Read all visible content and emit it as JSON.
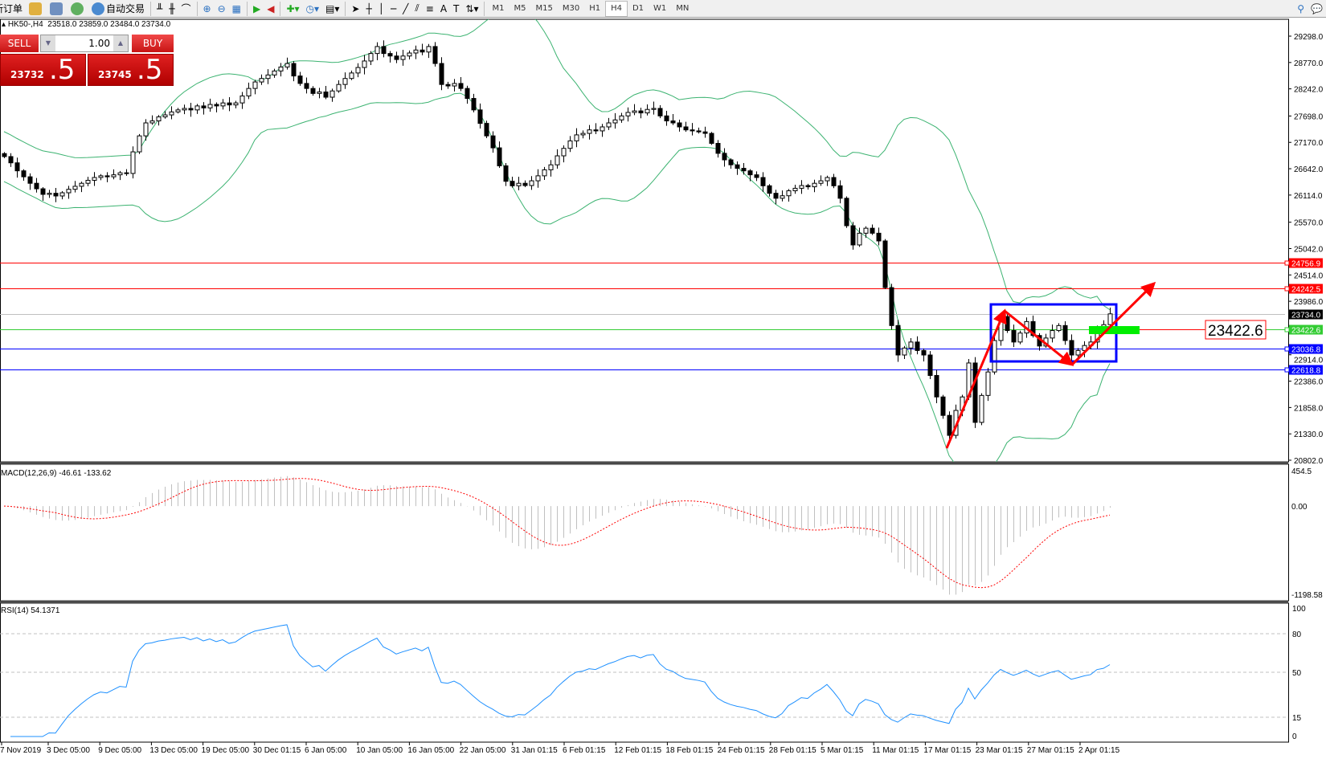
{
  "toolbar": {
    "new_order": "新订单",
    "auto_trading": "自动交易",
    "timeframes": [
      "M1",
      "M5",
      "M15",
      "M30",
      "H1",
      "H4",
      "D1",
      "W1",
      "MN"
    ],
    "active_timeframe": "H4"
  },
  "chart_header": {
    "symbol": "HK50-,H4",
    "ohlc": "23518.0 23859.0 23484.0 23734.0"
  },
  "trade_panel": {
    "sell_label": "SELL",
    "buy_label": "BUY",
    "lot": "1.00",
    "sell_price_main": "23732",
    "sell_price_big": ".5",
    "buy_price_main": "23745",
    "buy_price_big": ".5"
  },
  "chart_data": {
    "type": "candlestick",
    "symbol": "HK50-",
    "timeframe": "H4",
    "last_bar": {
      "open": 23518.0,
      "high": 23859.0,
      "low": 23484.0,
      "close": 23734.0
    },
    "price_ticks": [
      "29298.0",
      "28770.0",
      "28242.0",
      "27698.0",
      "27170.0",
      "26642.0",
      "26114.0",
      "25570.0",
      "25042.0",
      "24514.0",
      "23986.0",
      "22914.0",
      "22386.0",
      "21858.0",
      "21330.0",
      "20802.0"
    ],
    "ylim": [
      20802.0,
      29298.0
    ],
    "time_labels": [
      "7 Nov 2019",
      "3 Dec 05:00",
      "9 Dec 05:00",
      "13 Dec 05:00",
      "19 Dec 05:00",
      "30 Dec 01:15",
      "6 Jan 05:00",
      "10 Jan 05:00",
      "16 Jan 05:00",
      "22 Jan 05:00",
      "31 Jan 01:15",
      "6 Feb 01:15",
      "12 Feb 01:15",
      "18 Feb 01:15",
      "24 Feb 01:15",
      "28 Feb 01:15",
      "5 Mar 01:15",
      "11 Mar 01:15",
      "17 Mar 01:15",
      "23 Mar 01:15",
      "27 Mar 01:15",
      "2 Apr 01:15"
    ],
    "close": [
      26885,
      26760,
      26600,
      26480,
      26350,
      26240,
      26128,
      26150,
      26096,
      26160,
      26230,
      26290,
      26350,
      26410,
      26466,
      26500,
      26480,
      26520,
      26560,
      26547,
      26980,
      27300,
      27560,
      27600,
      27680,
      27720,
      27780,
      27820,
      27850,
      27820,
      27900,
      27860,
      27930,
      27900,
      27960,
      27920,
      27960,
      28100,
      28250,
      28380,
      28450,
      28520,
      28600,
      28680,
      28750,
      28500,
      28350,
      28250,
      28150,
      28180,
      28075,
      28200,
      28330,
      28450,
      28560,
      28670,
      28800,
      28950,
      29090,
      28950,
      28900,
      28830,
      28900,
      28960,
      29020,
      28980,
      29090,
      28750,
      28330,
      28300,
      28350,
      28250,
      28050,
      27820,
      27550,
      27300,
      27060,
      26700,
      26390,
      26300,
      26350,
      26305,
      26400,
      26500,
      26620,
      26720,
      26900,
      27050,
      27200,
      27320,
      27350,
      27420,
      27400,
      27480,
      27560,
      27620,
      27700,
      27770,
      27800,
      27760,
      27830,
      27850,
      27700,
      27600,
      27560,
      27480,
      27420,
      27400,
      27380,
      27350,
      27150,
      26950,
      26820,
      26720,
      26650,
      26600,
      26520,
      26466,
      26300,
      26150,
      26050,
      26100,
      26200,
      26250,
      26305,
      26280,
      26350,
      26400,
      26466,
      26300,
      26050,
      25500,
      25115,
      25350,
      25450,
      25350,
      25195,
      24260,
      23500,
      22910,
      23050,
      23170,
      23000,
      22910,
      22500,
      22070,
      21700,
      21300,
      21800,
      22070,
      22750,
      21560,
      22100,
      22570,
      23200,
      23680,
      23400,
      23170,
      23350,
      23580,
      23300,
      23090,
      23250,
      23400,
      23500,
      23200,
      22910,
      23000,
      23100,
      23170,
      23450,
      23518,
      23734
    ],
    "bollinger_color": "#3cb371",
    "bull_color": "#ffffff",
    "bear_color": "#000000",
    "horizontal_lines": [
      {
        "price": 24756.9,
        "label": "24756.9",
        "color": "#ff0000"
      },
      {
        "price": 24242.5,
        "label": "24242.5",
        "color": "#ff0000"
      },
      {
        "price": 23734.0,
        "label": "23734.0",
        "color": "#000000",
        "line_color": "#c0c0c0"
      },
      {
        "price": 23422.6,
        "label": "23422.6",
        "color": "#33cc33"
      },
      {
        "price": 23036.8,
        "label": "23036.8",
        "color": "#0000ff"
      },
      {
        "price": 22618.8,
        "label": "22618.8",
        "color": "#0000ff"
      }
    ],
    "annotation_label": "23422.6",
    "macd": {
      "label": "MACD(12,26,9) -46.61 -133.62",
      "ticks": [
        "454.5",
        "0.00",
        "-1198.58"
      ],
      "ylim": [
        -1198.58,
        454.5
      ],
      "histogram_color": "#c0c0c0",
      "signal_color": "#ff0000"
    },
    "rsi": {
      "label": "RSI(14) 54.1371",
      "ticks": [
        "100",
        "80",
        "50",
        "15",
        "0"
      ],
      "levels": [
        80,
        50,
        15
      ],
      "ylim": [
        0,
        100
      ],
      "color": "#1e90ff"
    }
  }
}
